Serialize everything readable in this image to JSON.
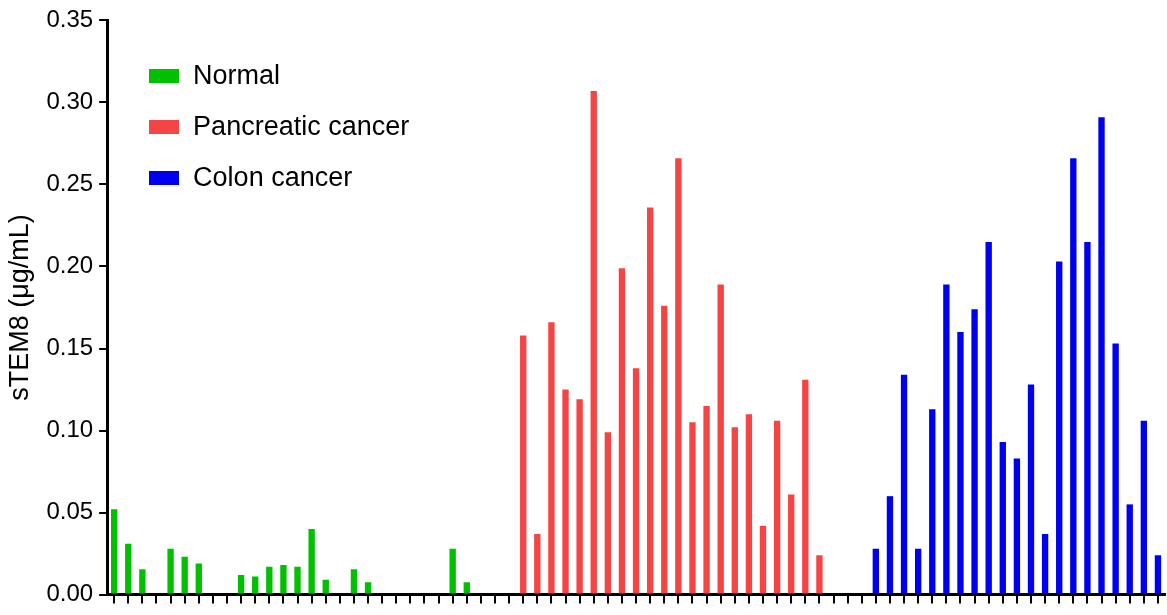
{
  "chart_data": {
    "type": "bar",
    "ylabel": "sTEM8 (μg/mL)",
    "categories": [
      null,
      null,
      null,
      null,
      null,
      null,
      null,
      null,
      null,
      null,
      null,
      null,
      null,
      null,
      null,
      null,
      null,
      null,
      null,
      null,
      null,
      null,
      null,
      null,
      null,
      null,
      null,
      null,
      null,
      null,
      null,
      null,
      null,
      null,
      null,
      null,
      null,
      null,
      null,
      null,
      null,
      null,
      null,
      null,
      null,
      null,
      null,
      null,
      null,
      null,
      null,
      null,
      null,
      null,
      null,
      null,
      null,
      null,
      null,
      null,
      null,
      null,
      null,
      null,
      null,
      null,
      null,
      null,
      null,
      null,
      null,
      null,
      null,
      null,
      null
    ],
    "series": [
      {
        "name": "Normal",
        "color": "#00c000",
        "values": [
          0.052,
          0.031,
          0.0155,
          null,
          0.028,
          0.023,
          0.019,
          null,
          null,
          0.012,
          0.011,
          0.017,
          0.018,
          0.017,
          0.04,
          0.009,
          null,
          0.0155,
          0.0075,
          null,
          null,
          null,
          null,
          null,
          0.028,
          0.0075,
          null,
          null,
          null,
          null,
          null,
          null,
          null,
          null,
          null,
          null,
          null,
          null,
          null,
          null,
          null,
          null,
          null,
          null,
          null,
          null,
          null,
          null,
          null,
          null,
          null,
          null,
          null,
          null,
          null,
          null,
          null,
          null,
          null,
          null,
          null,
          null,
          null,
          null,
          null,
          null,
          null,
          null,
          null,
          null,
          null,
          null,
          null,
          null,
          null
        ]
      },
      {
        "name": "Pancreatic cancer",
        "color": "#f44444",
        "values": [
          null,
          null,
          null,
          null,
          null,
          null,
          null,
          null,
          null,
          null,
          null,
          null,
          null,
          null,
          null,
          null,
          null,
          null,
          null,
          null,
          null,
          null,
          null,
          null,
          null,
          null,
          null,
          null,
          null,
          0.158,
          0.037,
          0.166,
          0.125,
          0.119,
          0.307,
          0.099,
          0.199,
          0.138,
          0.236,
          0.176,
          0.266,
          0.105,
          0.115,
          0.189,
          0.102,
          0.11,
          0.042,
          0.106,
          0.061,
          0.131,
          0.024,
          null,
          null,
          null,
          null,
          null,
          null,
          null,
          null,
          null,
          null,
          null,
          null,
          null,
          null,
          null,
          null,
          null,
          null,
          null,
          null,
          null,
          null,
          null,
          null
        ]
      },
      {
        "name": "Colon cancer",
        "color": "#0000f0",
        "values": [
          null,
          null,
          null,
          null,
          null,
          null,
          null,
          null,
          null,
          null,
          null,
          null,
          null,
          null,
          null,
          null,
          null,
          null,
          null,
          null,
          null,
          null,
          null,
          null,
          null,
          null,
          null,
          null,
          null,
          null,
          null,
          null,
          null,
          null,
          null,
          null,
          null,
          null,
          null,
          null,
          null,
          null,
          null,
          null,
          null,
          null,
          null,
          null,
          null,
          null,
          null,
          null,
          null,
          null,
          0.028,
          0.06,
          0.134,
          0.028,
          0.113,
          0.189,
          0.16,
          0.174,
          0.215,
          0.093,
          0.083,
          0.128,
          0.037,
          0.203,
          0.266,
          0.215,
          0.291,
          0.153,
          0.055,
          0.106,
          0.024
        ]
      }
    ],
    "ylim": [
      0,
      0.35
    ],
    "yticks": [
      {
        "value": 0,
        "label": "0.00"
      },
      {
        "value": 0.05,
        "label": "0.05"
      },
      {
        "value": 0.1,
        "label": "0.10"
      },
      {
        "value": 0.15,
        "label": "0.15"
      },
      {
        "value": 0.2,
        "label": "0.20"
      },
      {
        "value": 0.25,
        "label": "0.25"
      },
      {
        "value": 0.3,
        "label": "0.30"
      },
      {
        "value": 0.35,
        "label": "0.35"
      }
    ],
    "tick_labels": "y",
    "grid": false,
    "legend": "top left"
  }
}
